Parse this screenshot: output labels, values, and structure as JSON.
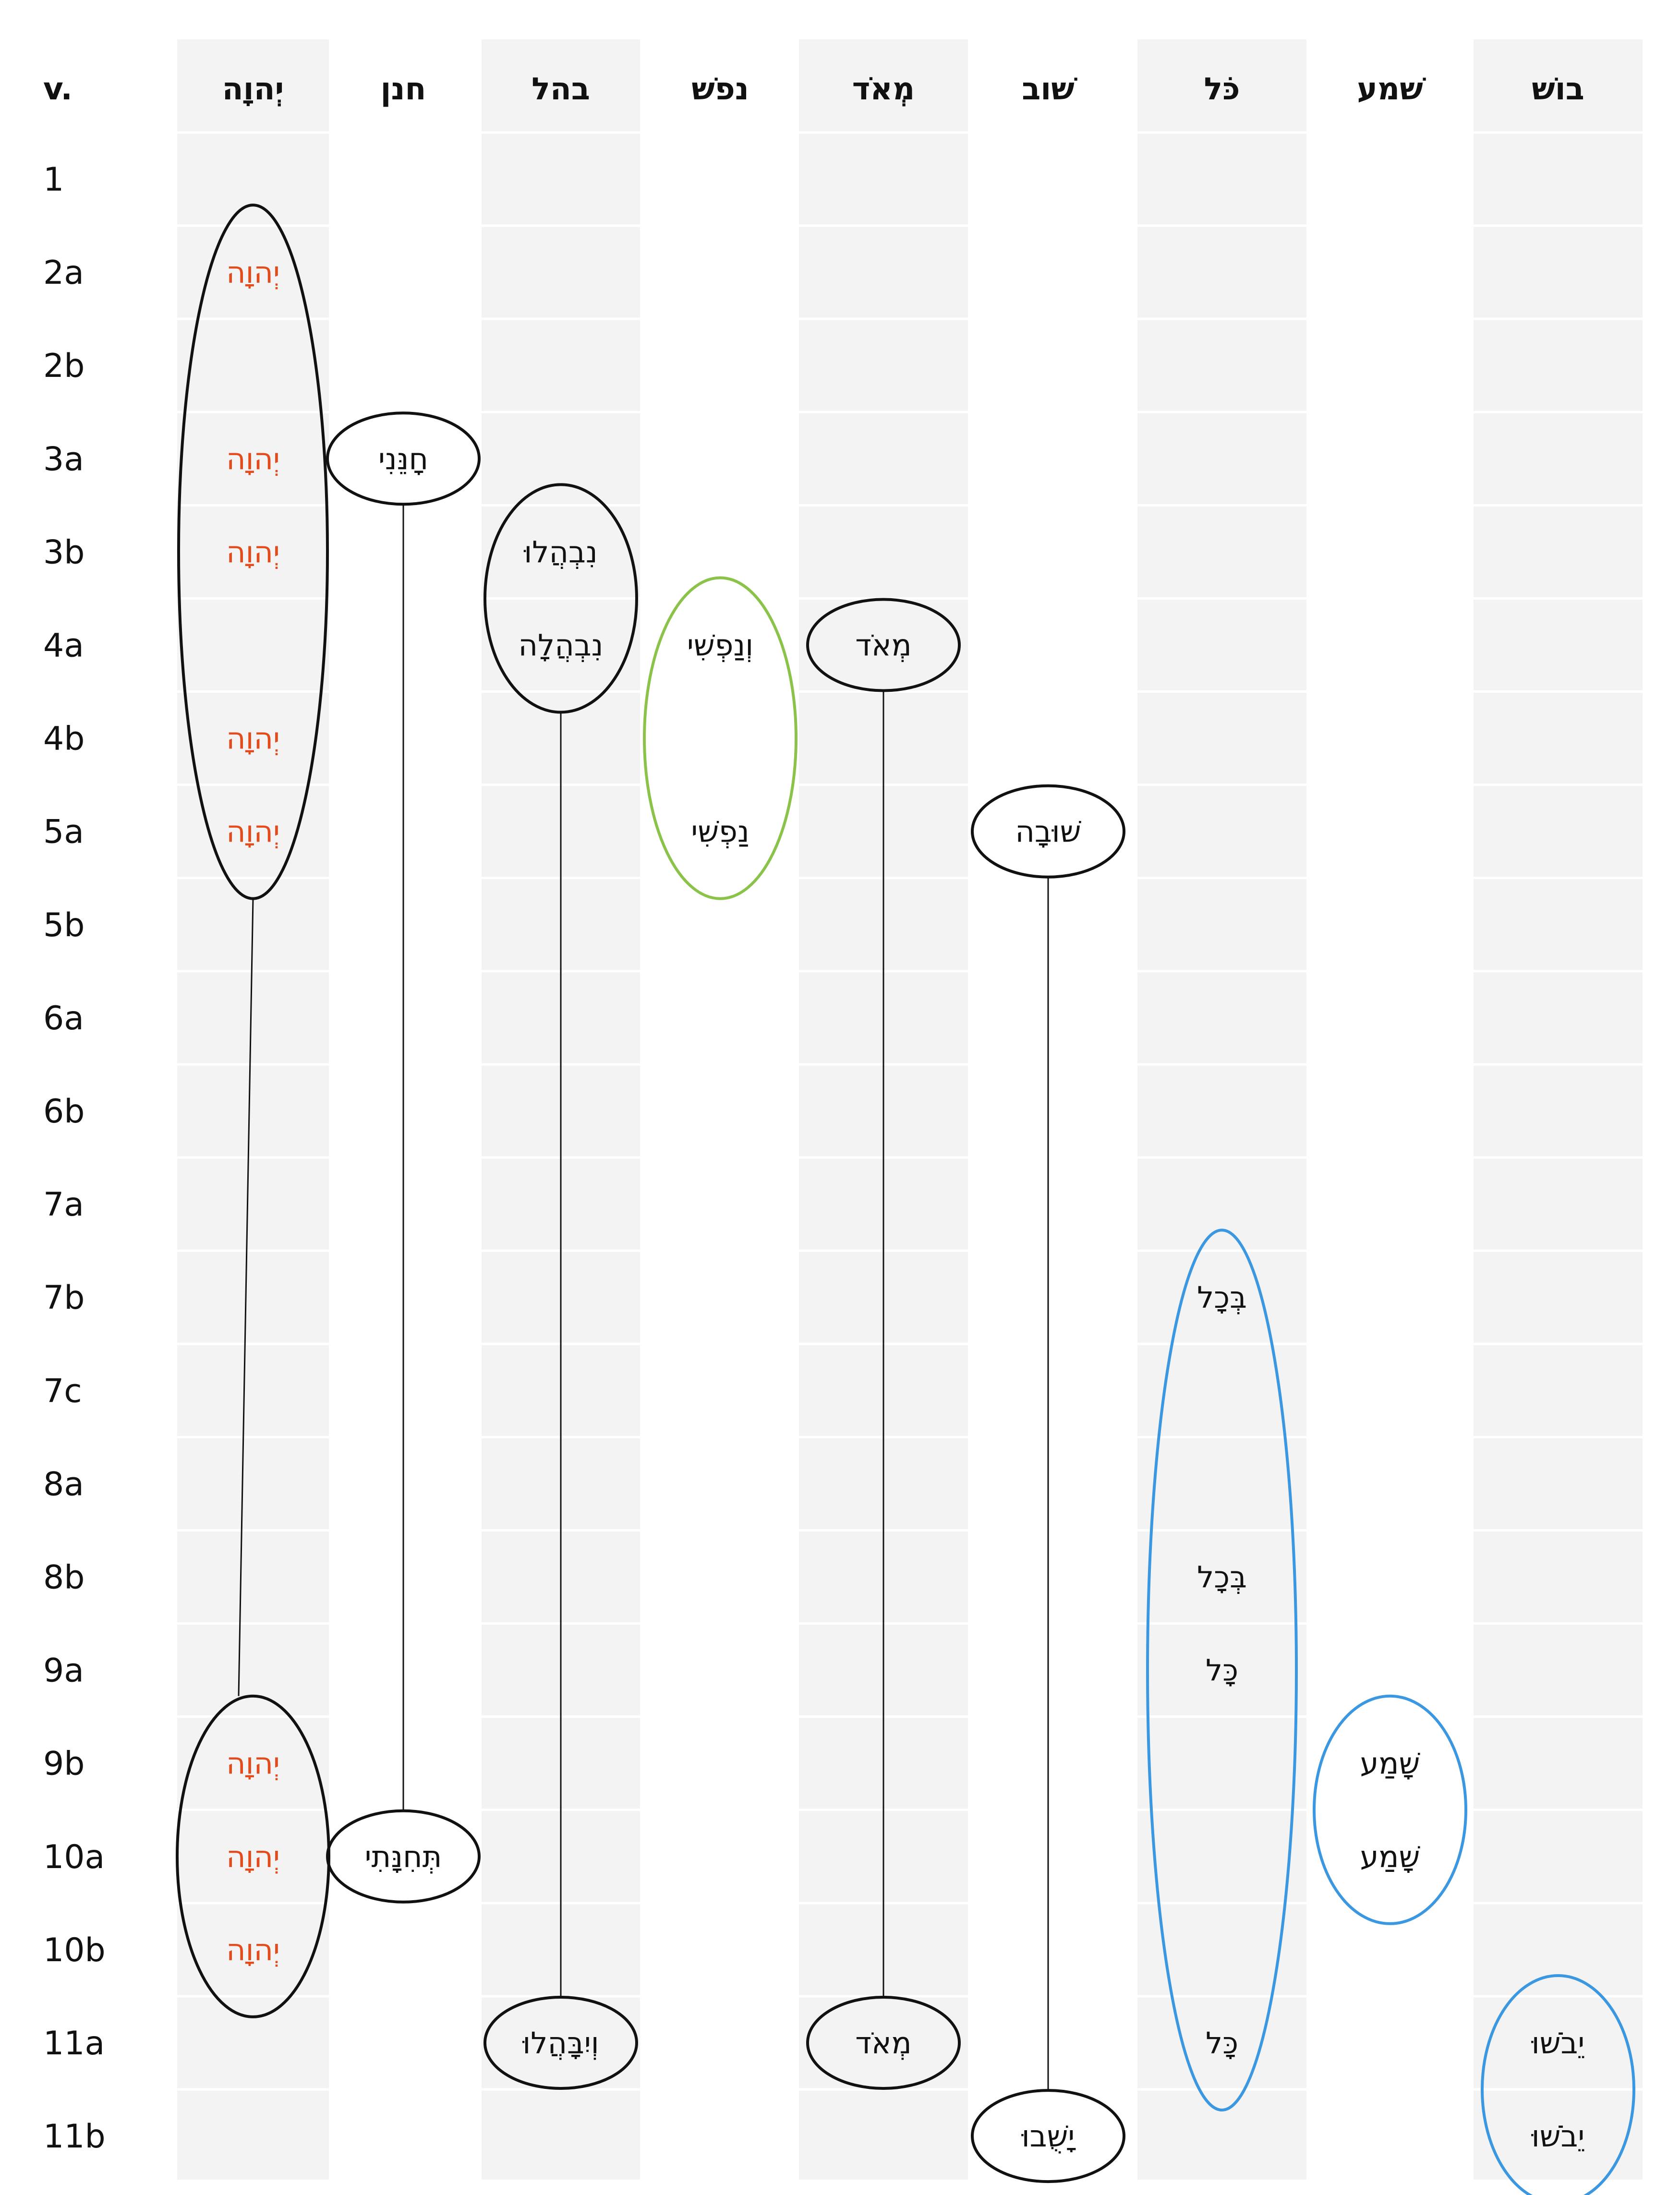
{
  "verse_header": "v.",
  "columns": [
    {
      "key": "yhwh",
      "header": "יְהוָה",
      "shaded": true
    },
    {
      "key": "hnn",
      "header": "חנן",
      "shaded": false
    },
    {
      "key": "bhl",
      "header": "בהל",
      "shaded": true
    },
    {
      "key": "npsh",
      "header": "נפשׁ",
      "shaded": false
    },
    {
      "key": "meod",
      "header": "מְאֹד",
      "shaded": true
    },
    {
      "key": "shub",
      "header": "שׁוב",
      "shaded": false
    },
    {
      "key": "kol",
      "header": "כֹּל",
      "shaded": true
    },
    {
      "key": "shama",
      "header": "שׁמע",
      "shaded": false
    },
    {
      "key": "bosh",
      "header": "בושׁ",
      "shaded": true
    }
  ],
  "rows": [
    "1",
    "2a",
    "2b",
    "3a",
    "3b",
    "4a",
    "4b",
    "5a",
    "5b",
    "6a",
    "6b",
    "7a",
    "7b",
    "7c",
    "8a",
    "8b",
    "9a",
    "9b",
    "10a",
    "10b",
    "11a",
    "11b"
  ],
  "entries": [
    {
      "col": "yhwh",
      "row": "2a",
      "text": "יְהוָה"
    },
    {
      "col": "yhwh",
      "row": "3a",
      "text": "יְהוָה"
    },
    {
      "col": "yhwh",
      "row": "3b",
      "text": "יְהוָה"
    },
    {
      "col": "yhwh",
      "row": "4b",
      "text": "יְהוָה"
    },
    {
      "col": "yhwh",
      "row": "5a",
      "text": "יְהוָה"
    },
    {
      "col": "yhwh",
      "row": "9b",
      "text": "יְהוָה"
    },
    {
      "col": "yhwh",
      "row": "10a",
      "text": "יְהוָה"
    },
    {
      "col": "yhwh",
      "row": "10b",
      "text": "יְהוָה"
    },
    {
      "col": "hnn",
      "row": "3a",
      "text": "חָנֵּנִי"
    },
    {
      "col": "hnn",
      "row": "10a",
      "text": "תְּחִנָּתִי"
    },
    {
      "col": "bhl",
      "row": "3b",
      "text": "נִבְהֲלוּ"
    },
    {
      "col": "bhl",
      "row": "4a",
      "text": "נִבְהֲלָה"
    },
    {
      "col": "bhl",
      "row": "11a",
      "text": "וְיִבָּהֲלוּ"
    },
    {
      "col": "npsh",
      "row": "4a",
      "text": "וְנַפְשִׁי"
    },
    {
      "col": "npsh",
      "row": "5a",
      "text": "נַפְשִׁי"
    },
    {
      "col": "meod",
      "row": "4a",
      "text": "מְאֹד"
    },
    {
      "col": "meod",
      "row": "11a",
      "text": "מְאֹד"
    },
    {
      "col": "shub",
      "row": "5a",
      "text": "שׁוּבָה"
    },
    {
      "col": "shub",
      "row": "11b",
      "text": "יָשֻׁבוּ"
    },
    {
      "col": "kol",
      "row": "7b",
      "text": "בְּכָל"
    },
    {
      "col": "kol",
      "row": "8b",
      "text": "בְּכָל"
    },
    {
      "col": "kol",
      "row": "9a",
      "text": "כָּל"
    },
    {
      "col": "kol",
      "row": "11a",
      "text": "כָּל"
    },
    {
      "col": "shama",
      "row": "9b",
      "text": "שָׁמַע"
    },
    {
      "col": "shama",
      "row": "10a",
      "text": "שָׁמַע"
    },
    {
      "col": "bosh",
      "row": "11a",
      "text": "יֵבֹשׁוּ"
    },
    {
      "col": "bosh",
      "row": "11b",
      "text": "יֵבֹשׁוּ"
    }
  ],
  "groups": [
    {
      "col": "yhwh",
      "from": "2a",
      "to": "5a",
      "color": "#111111"
    },
    {
      "col": "yhwh",
      "from": "9b",
      "to": "10b",
      "color": "#111111"
    },
    {
      "col": "hnn",
      "from": "3a",
      "to": "3a",
      "color": "#111111"
    },
    {
      "col": "hnn",
      "from": "10a",
      "to": "10a",
      "color": "#111111"
    },
    {
      "col": "bhl",
      "from": "3b",
      "to": "4a",
      "color": "#111111"
    },
    {
      "col": "bhl",
      "from": "11a",
      "to": "11a",
      "color": "#111111"
    },
    {
      "col": "npsh",
      "from": "4a",
      "to": "5a",
      "color": "#8bc34a"
    },
    {
      "col": "meod",
      "from": "4a",
      "to": "4a",
      "color": "#111111"
    },
    {
      "col": "meod",
      "from": "11a",
      "to": "11a",
      "color": "#111111"
    },
    {
      "col": "shub",
      "from": "5a",
      "to": "5a",
      "color": "#111111"
    },
    {
      "col": "shub",
      "from": "11b",
      "to": "11b",
      "color": "#111111"
    },
    {
      "col": "kol",
      "from": "7b",
      "to": "11a",
      "color": "#3a97e0"
    },
    {
      "col": "shama",
      "from": "9b",
      "to": "10a",
      "color": "#3a97e0"
    },
    {
      "col": "bosh",
      "from": "11a",
      "to": "11b",
      "color": "#3a97e0"
    }
  ],
  "links": [
    {
      "col": "yhwh",
      "from_group": 0,
      "to_group": 1
    },
    {
      "col": "hnn",
      "from_group": 2,
      "to_group": 3
    },
    {
      "col": "bhl",
      "from_group": 4,
      "to_group": 5
    },
    {
      "col": "meod",
      "from_group": 7,
      "to_group": 8
    },
    {
      "col": "shub",
      "from_group": 9,
      "to_group": 10
    }
  ],
  "colors": {
    "background": "#ffffff",
    "column_shade": "#f3f3f3",
    "row_divider": "#ffffff",
    "yhwh_text": "#e34a1c",
    "black": "#111111",
    "green": "#8bc34a",
    "blue": "#3a97e0"
  }
}
